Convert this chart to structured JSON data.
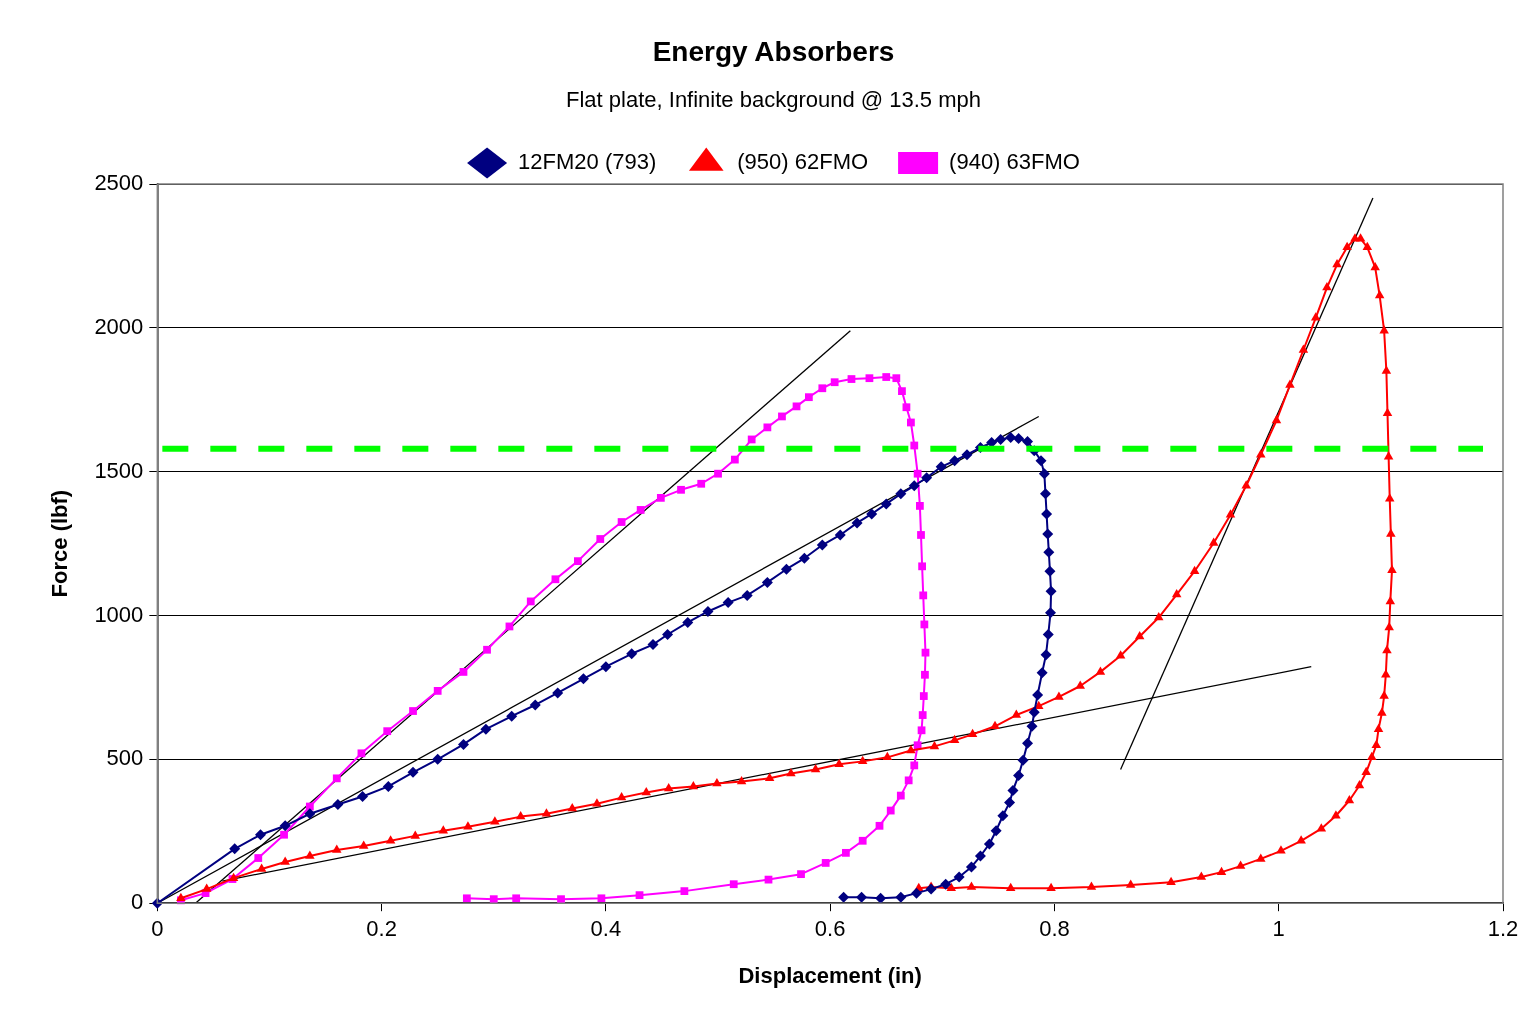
{
  "chart_data": {
    "type": "line",
    "title": "Energy Absorbers",
    "subtitle": "Flat plate, Infinite background @ 13.5 mph",
    "xlabel": "Displacement (in)",
    "ylabel": "Force (lbf)",
    "xlim": [
      0,
      1.2
    ],
    "xticks": [
      0,
      0.2,
      0.4,
      0.6,
      0.8,
      1,
      1.2
    ],
    "ylim": [
      0,
      2500
    ],
    "yticks": [
      0,
      500,
      1000,
      1500,
      2000,
      2500
    ],
    "grid": "y",
    "legend": "top",
    "line_style": "solid",
    "series": [
      {
        "name": "12FM20 (793)",
        "color": "#000080",
        "marker": "diamond",
        "x": [
          0,
          0.069,
          0.092,
          0.114,
          0.136,
          0.161,
          0.183,
          0.206,
          0.228,
          0.25,
          0.273,
          0.293,
          0.316,
          0.337,
          0.357,
          0.38,
          0.4,
          0.423,
          0.442,
          0.455,
          0.473,
          0.491,
          0.509,
          0.526,
          0.544,
          0.561,
          0.577,
          0.593,
          0.609,
          0.624,
          0.637,
          0.65,
          0.663,
          0.675,
          0.686,
          0.699,
          0.711,
          0.722,
          0.734,
          0.744,
          0.752,
          0.761,
          0.768,
          0.776,
          0.782,
          0.788,
          0.791,
          0.792,
          0.793,
          0.794,
          0.795,
          0.796,
          0.797,
          0.7965,
          0.7945,
          0.7925,
          0.789,
          0.785,
          0.782,
          0.78,
          0.776,
          0.772,
          0.768,
          0.763,
          0.76,
          0.754,
          0.748,
          0.742,
          0.734,
          0.726,
          0.715,
          0.703,
          0.69,
          0.677,
          0.663,
          0.645,
          0.628,
          0.612
        ],
        "values": [
          0,
          189,
          238,
          269,
          311,
          343,
          371,
          406,
          455,
          500,
          552,
          605,
          650,
          689,
          731,
          780,
          822,
          867,
          899,
          934,
          976,
          1014,
          1045,
          1070,
          1115,
          1161,
          1199,
          1245,
          1280,
          1322,
          1353,
          1388,
          1423,
          1451,
          1479,
          1517,
          1538,
          1559,
          1584,
          1601,
          1612,
          1619,
          1615,
          1605,
          1573,
          1538,
          1493,
          1423,
          1353,
          1283,
          1220,
          1154,
          1084,
          1010,
          934,
          864,
          801,
          724,
          664,
          615,
          556,
          497,
          444,
          392,
          350,
          304,
          252,
          206,
          164,
          126,
          91,
          66,
          49,
          35,
          21,
          17,
          21,
          21
        ]
      },
      {
        "name": "(950) 62FMO",
        "color": "#ff0000",
        "marker": "triangle",
        "x": [
          0.021,
          0.044,
          0.068,
          0.093,
          0.114,
          0.136,
          0.16,
          0.184,
          0.208,
          0.23,
          0.255,
          0.277,
          0.301,
          0.324,
          0.347,
          0.37,
          0.392,
          0.414,
          0.436,
          0.456,
          0.478,
          0.499,
          0.521,
          0.546,
          0.565,
          0.587,
          0.608,
          0.629,
          0.651,
          0.672,
          0.693,
          0.711,
          0.727,
          0.747,
          0.766,
          0.786,
          0.804,
          0.823,
          0.841,
          0.859,
          0.876,
          0.893,
          0.909,
          0.925,
          0.942,
          0.957,
          0.971,
          0.984,
          0.998,
          1.01,
          1.022,
          1.033,
          1.043,
          1.052,
          1.061,
          1.068,
          1.073,
          1.079,
          1.086,
          1.09,
          1.094,
          1.096,
          1.097,
          1.098,
          1.099,
          1.1,
          1.101,
          1.0995,
          1.0985,
          1.0965,
          1.0955,
          1.094,
          1.092,
          1.089,
          1.087,
          1.083,
          1.078,
          1.072,
          1.063,
          1.051,
          1.038,
          1.02,
          1.002,
          0.984,
          0.966,
          0.949,
          0.931,
          0.904,
          0.868,
          0.833,
          0.797,
          0.761,
          0.726,
          0.708,
          0.69,
          0.679
        ],
        "values": [
          17,
          49,
          87,
          119,
          143,
          164,
          185,
          199,
          217,
          234,
          252,
          266,
          283,
          301,
          311,
          329,
          346,
          367,
          385,
          399,
          406,
          416,
          423,
          434,
          451,
          465,
          483,
          493,
          507,
          531,
          545,
          566,
          587,
          615,
          654,
          685,
          717,
          755,
          804,
          860,
          927,
          993,
          1073,
          1154,
          1252,
          1350,
          1451,
          1559,
          1678,
          1801,
          1923,
          2035,
          2140,
          2220,
          2280,
          2310,
          2310,
          2280,
          2210,
          2112,
          1990,
          1850,
          1703,
          1552,
          1406,
          1283,
          1157,
          1049,
          958,
          878,
          794,
          720,
          661,
          605,
          549,
          507,
          455,
          409,
          357,
          304,
          259,
          217,
          182,
          154,
          129,
          108,
          91,
          73,
          63,
          56,
          52,
          52,
          56,
          52,
          56,
          52
        ]
      },
      {
        "name": "(940) 63FMO",
        "color": "#ff00ff",
        "marker": "square",
        "x": [
          0.021,
          0.043,
          0.067,
          0.09,
          0.113,
          0.136,
          0.16,
          0.182,
          0.205,
          0.228,
          0.25,
          0.273,
          0.294,
          0.314,
          0.333,
          0.355,
          0.375,
          0.395,
          0.414,
          0.431,
          0.449,
          0.467,
          0.485,
          0.5,
          0.515,
          0.53,
          0.544,
          0.557,
          0.57,
          0.581,
          0.593,
          0.604,
          0.619,
          0.635,
          0.65,
          0.659,
          0.664,
          0.668,
          0.672,
          0.675,
          0.678,
          0.68,
          0.681,
          0.682,
          0.683,
          0.684,
          0.685,
          0.6845,
          0.6835,
          0.6825,
          0.6815,
          0.678,
          0.675,
          0.67,
          0.663,
          0.654,
          0.644,
          0.629,
          0.614,
          0.596,
          0.574,
          0.545,
          0.514,
          0.47,
          0.43,
          0.396,
          0.36,
          0.32,
          0.3,
          0.276
        ],
        "values": [
          10,
          35,
          84,
          157,
          238,
          336,
          434,
          521,
          598,
          668,
          738,
          804,
          881,
          962,
          1049,
          1126,
          1189,
          1266,
          1325,
          1367,
          1409,
          1437,
          1458,
          1493,
          1542,
          1612,
          1654,
          1692,
          1727,
          1759,
          1790,
          1811,
          1822,
          1825,
          1829,
          1825,
          1780,
          1724,
          1671,
          1591,
          1493,
          1381,
          1280,
          1171,
          1070,
          969,
          871,
          794,
          720,
          654,
          601,
          549,
          479,
          427,
          374,
          322,
          269,
          217,
          175,
          140,
          101,
          82,
          66,
          42,
          28,
          17,
          14,
          17,
          14,
          17
        ]
      },
      {
        "color": "#000000",
        "marker": "none",
        "x": [
          0.034,
          0.618
        ],
        "values": [
          0,
          1990
        ]
      },
      {
        "color": "#000000",
        "marker": "none",
        "x": [
          0,
          0.786
        ],
        "values": [
          0,
          1692
        ]
      },
      {
        "color": "#000000",
        "marker": "none",
        "x": [
          0.058,
          1.029
        ],
        "values": [
          77,
          822
        ]
      },
      {
        "color": "#000000",
        "marker": "none",
        "x": [
          0.859,
          1.084
        ],
        "values": [
          465,
          2451
        ]
      }
    ],
    "ref_lines": [
      {
        "axis": "y",
        "value": 1580,
        "color": "#00ff00",
        "line_style": "dashed"
      }
    ]
  }
}
